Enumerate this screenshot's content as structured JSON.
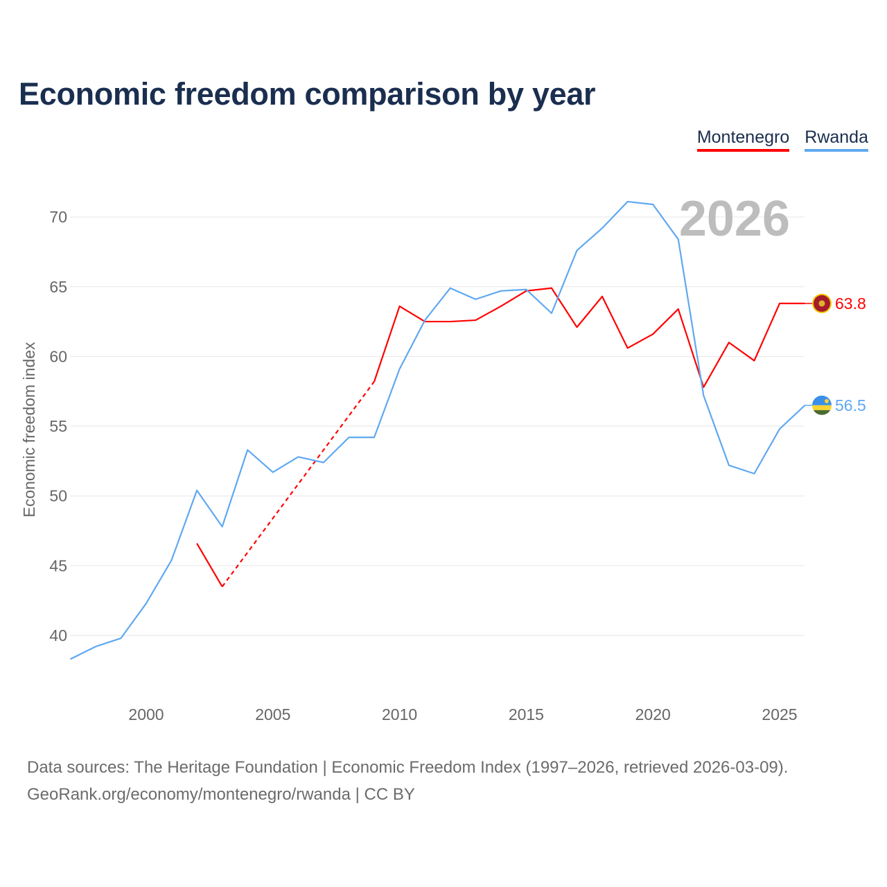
{
  "title": "Economic freedom comparison by year",
  "legend": [
    {
      "label": "Montenegro",
      "color": "#ff0000"
    },
    {
      "label": "Rwanda",
      "color": "#5fa8f0"
    }
  ],
  "footer": {
    "line1": "Data sources: The Heritage Foundation | Economic Freedom Index (1997–2026, retrieved 2026-03-09).",
    "line2": "GeoRank.org/economy/montenegro/rwanda | CC BY"
  },
  "chart_data": {
    "type": "line",
    "title": "Economic freedom comparison by year",
    "xlabel": "",
    "ylabel": "Economic freedom index",
    "xlim": [
      1997,
      2026
    ],
    "ylim": [
      35.5,
      73
    ],
    "xticks": [
      2000,
      2005,
      2010,
      2015,
      2020,
      2025
    ],
    "yticks": [
      40,
      45,
      50,
      55,
      60,
      65,
      70
    ],
    "grid": true,
    "legend_position": "top-right",
    "annotation_year": "2026",
    "series": [
      {
        "name": "Montenegro",
        "color": "#ff0000",
        "end_label": "63.8",
        "x": [
          2002,
          2003,
          2009,
          2010,
          2011,
          2012,
          2013,
          2014,
          2015,
          2016,
          2017,
          2018,
          2019,
          2020,
          2021,
          2022,
          2023,
          2024,
          2025,
          2026
        ],
        "values": [
          46.6,
          43.5,
          58.2,
          63.6,
          62.5,
          62.5,
          62.6,
          63.6,
          64.7,
          64.9,
          62.1,
          64.3,
          60.6,
          61.6,
          63.4,
          57.8,
          61.0,
          59.7,
          63.8,
          63.8
        ],
        "gaps_dashed": [
          [
            2003,
            2009
          ]
        ]
      },
      {
        "name": "Rwanda",
        "color": "#5fa8f0",
        "end_label": "56.5",
        "x": [
          1997,
          1998,
          1999,
          2000,
          2001,
          2002,
          2003,
          2004,
          2005,
          2006,
          2007,
          2008,
          2009,
          2010,
          2011,
          2012,
          2013,
          2014,
          2015,
          2016,
          2017,
          2018,
          2019,
          2020,
          2021,
          2022,
          2023,
          2024,
          2025,
          2026
        ],
        "values": [
          38.3,
          39.2,
          39.8,
          42.3,
          45.4,
          50.4,
          47.8,
          53.3,
          51.7,
          52.8,
          52.4,
          54.2,
          54.2,
          59.1,
          62.6,
          64.9,
          64.1,
          64.7,
          64.8,
          63.1,
          67.6,
          69.2,
          71.1,
          70.9,
          68.4,
          57.2,
          52.2,
          51.6,
          54.8,
          56.5
        ]
      }
    ]
  }
}
